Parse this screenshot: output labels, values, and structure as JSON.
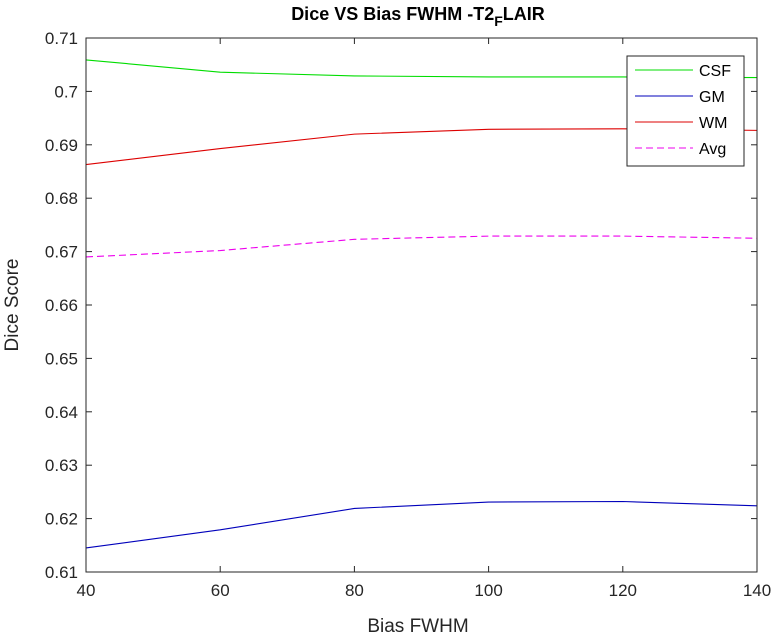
{
  "chart_data": {
    "type": "line",
    "title": "Dice VS Bias FWHM -T2",
    "title_subscript": "F",
    "title_suffix": "LAIR",
    "xlabel": "Bias FWHM",
    "ylabel": "Dice Score",
    "xlim": [
      40,
      140
    ],
    "ylim": [
      0.61,
      0.71
    ],
    "xticks": [
      40,
      60,
      80,
      100,
      120,
      140
    ],
    "yticks": [
      0.61,
      0.62,
      0.63,
      0.64,
      0.65,
      0.66,
      0.67,
      0.68,
      0.69,
      0.7,
      0.71
    ],
    "ytick_labels": [
      "0.61",
      "0.62",
      "0.63",
      "0.64",
      "0.65",
      "0.66",
      "0.67",
      "0.68",
      "0.69",
      "0.7",
      "0.71"
    ],
    "grid": false,
    "legend_position": "top-right",
    "x": [
      40,
      60,
      80,
      100,
      120,
      140
    ],
    "series": [
      {
        "name": "CSF",
        "color": "#00dd00",
        "style": "solid",
        "values": [
          0.7059,
          0.7036,
          0.7029,
          0.7027,
          0.7027,
          0.7026
        ]
      },
      {
        "name": "GM",
        "color": "#0000bb",
        "style": "solid",
        "values": [
          0.6145,
          0.6179,
          0.6219,
          0.6231,
          0.6232,
          0.6224
        ]
      },
      {
        "name": "WM",
        "color": "#dd0000",
        "style": "solid",
        "values": [
          0.6863,
          0.6893,
          0.692,
          0.6929,
          0.693,
          0.6927
        ]
      },
      {
        "name": "Avg",
        "color": "#ee00ee",
        "style": "dashed",
        "values": [
          0.669,
          0.6702,
          0.6723,
          0.6729,
          0.6729,
          0.6725
        ]
      }
    ]
  }
}
